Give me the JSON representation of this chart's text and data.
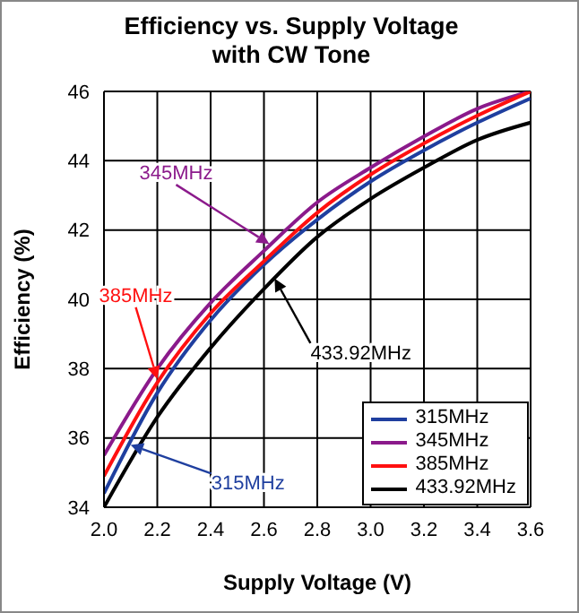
{
  "chart_data": {
    "type": "line",
    "title": "Efficiency vs. Supply Voltage\nwith CW Tone",
    "xlabel": "Supply Voltage (V)",
    "ylabel": "Efficiency (%)",
    "x": [
      2.0,
      2.2,
      2.4,
      2.6,
      2.8,
      3.0,
      3.2,
      3.4,
      3.6
    ],
    "series": [
      {
        "name": "315MHz",
        "color": "#1f3f9f",
        "values": [
          34.4,
          37.3,
          39.4,
          41.0,
          42.3,
          43.4,
          44.3,
          45.1,
          45.8
        ]
      },
      {
        "name": "345MHz",
        "color": "#8b1a8b",
        "values": [
          35.5,
          38.0,
          39.9,
          41.4,
          42.8,
          43.8,
          44.7,
          45.5,
          46.0
        ]
      },
      {
        "name": "385MHz",
        "color": "#ff1010",
        "values": [
          34.9,
          37.6,
          39.6,
          41.1,
          42.5,
          43.6,
          44.5,
          45.3,
          46.0
        ]
      },
      {
        "name": "433.92MHz",
        "color": "#000000",
        "values": [
          34.0,
          36.6,
          38.6,
          40.3,
          41.8,
          42.9,
          43.8,
          44.6,
          45.1
        ]
      }
    ],
    "annotations": [
      {
        "text": "345MHz",
        "x": 2.62,
        "y": 41.6
      },
      {
        "text": "385MHz",
        "x": 2.2,
        "y": 37.7
      },
      {
        "text": "433.92MHz",
        "x": 2.64,
        "y": 40.6
      },
      {
        "text": "315MHz",
        "x": 2.1,
        "y": 35.8
      }
    ],
    "xlim": [
      2.0,
      3.6
    ],
    "xticks": [
      {
        "value": 2.0,
        "label": "2.0"
      },
      {
        "value": 2.2,
        "label": "2.2"
      },
      {
        "value": 2.4,
        "label": "2.4"
      },
      {
        "value": 2.6,
        "label": "2.6"
      },
      {
        "value": 2.8,
        "label": "2.8"
      },
      {
        "value": 3.0,
        "label": "3.0"
      },
      {
        "value": 3.2,
        "label": "3.2"
      },
      {
        "value": 3.4,
        "label": "3.4"
      },
      {
        "value": 3.6,
        "label": "3.6"
      }
    ],
    "ylim": [
      34,
      46
    ],
    "yticks": [
      34,
      36,
      38,
      40,
      42,
      44,
      46
    ],
    "grid": true,
    "legend": "bottom right",
    "marker": "none",
    "line_style": "solid"
  }
}
